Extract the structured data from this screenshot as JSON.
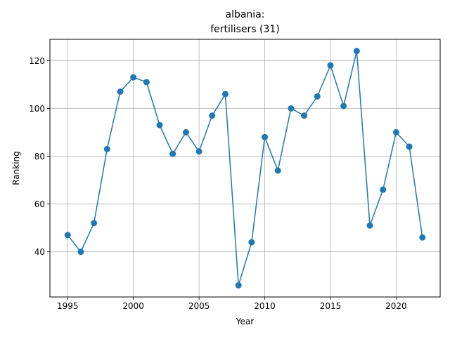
{
  "chart_data": {
    "type": "line",
    "title_line1": "albania:",
    "title_line2": "fertilisers (31)",
    "xlabel": "Year",
    "ylabel": "Ranking",
    "xlim": [
      1993.65,
      2023.35
    ],
    "ylim": [
      21.1,
      128.9
    ],
    "xticks": [
      1995,
      2000,
      2005,
      2010,
      2015,
      2020
    ],
    "yticks": [
      40,
      60,
      80,
      100,
      120
    ],
    "grid": true,
    "series_color": "#1f77b4",
    "series": [
      {
        "x": [
          1995,
          1996,
          1997,
          1998,
          1999,
          2000,
          2001,
          2002,
          2003,
          2004,
          2005,
          2006,
          2007,
          2008,
          2009,
          2010,
          2011,
          2012,
          2013,
          2014,
          2015,
          2016,
          2017,
          2018,
          2019,
          2020,
          2021,
          2022
        ],
        "values": [
          47,
          40,
          52,
          83,
          107,
          113,
          111,
          93,
          81,
          90,
          82,
          97,
          106,
          26,
          44,
          88,
          74,
          100,
          97,
          105,
          118,
          101,
          124,
          51,
          66,
          90,
          84,
          46
        ]
      }
    ]
  }
}
